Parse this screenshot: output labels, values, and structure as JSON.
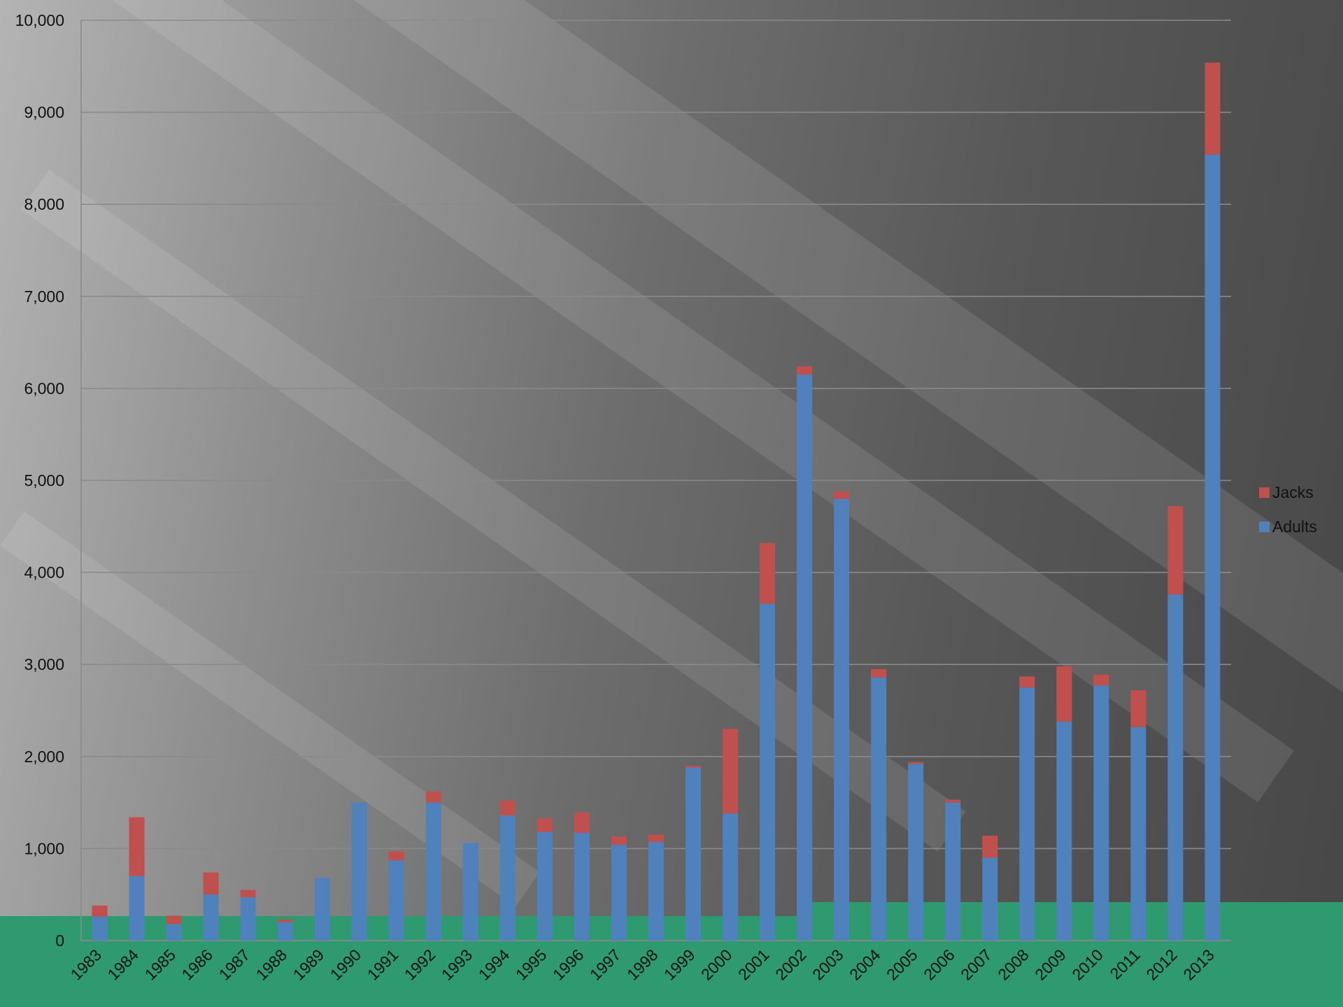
{
  "chart_data": {
    "type": "bar",
    "stacked": true,
    "title": "",
    "xlabel": "",
    "ylabel": "",
    "ylim": [
      0,
      10000
    ],
    "yticks": [
      "0",
      "1,000",
      "2,000",
      "3,000",
      "4,000",
      "5,000",
      "6,000",
      "7,000",
      "8,000",
      "9,000",
      "10,000"
    ],
    "categories": [
      "1983",
      "1984",
      "1985",
      "1986",
      "1987",
      "1988",
      "1989",
      "1990",
      "1991",
      "1992",
      "1993",
      "1994",
      "1995",
      "1996",
      "1997",
      "1998",
      "1999",
      "2000",
      "2001",
      "2002",
      "2003",
      "2004",
      "2005",
      "2006",
      "2007",
      "2008",
      "2009",
      "2010",
      "2011",
      "2012",
      "2013"
    ],
    "series": [
      {
        "name": "Adults",
        "color": "#4f81bd",
        "values": [
          260,
          700,
          180,
          500,
          470,
          200,
          680,
          1500,
          870,
          1500,
          1060,
          1360,
          1180,
          1170,
          1040,
          1070,
          1880,
          1380,
          3660,
          6150,
          4800,
          2860,
          1920,
          1500,
          900,
          2750,
          2380,
          2770,
          2320,
          3760,
          8540
        ]
      },
      {
        "name": "Jacks",
        "color": "#c0504d",
        "values": [
          120,
          640,
          90,
          240,
          80,
          30,
          0,
          0,
          100,
          120,
          0,
          160,
          150,
          220,
          90,
          80,
          20,
          920,
          660,
          90,
          80,
          90,
          20,
          30,
          240,
          120,
          600,
          120,
          400,
          960,
          1000
        ]
      }
    ],
    "legend": {
      "position": "right",
      "order": [
        "Jacks",
        "Adults"
      ]
    },
    "grid": true
  }
}
